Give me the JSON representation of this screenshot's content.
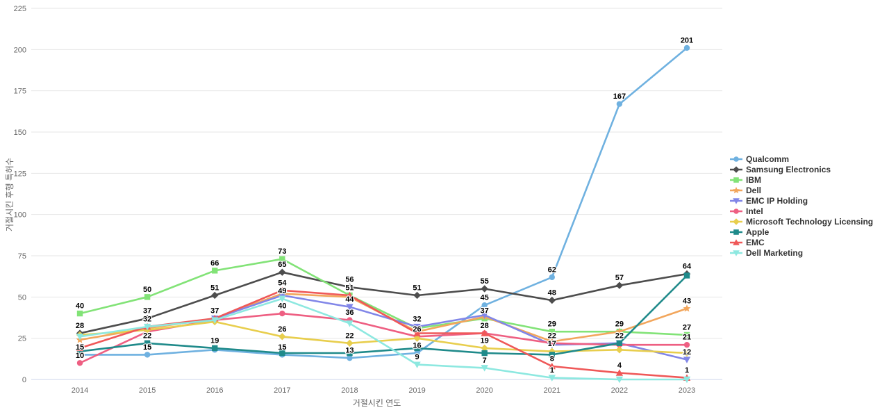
{
  "chart_data": {
    "type": "line",
    "x": [
      2014,
      2015,
      2016,
      2017,
      2018,
      2019,
      2020,
      2021,
      2022,
      2023
    ],
    "xlabel": "거절시킨 연도",
    "ylabel": "거절시킨 후행 특허수",
    "ylim": [
      0,
      225
    ],
    "yticks": [
      0,
      25,
      50,
      75,
      100,
      125,
      150,
      175,
      200,
      225
    ],
    "grid": true,
    "legend_position": "right",
    "colors": {
      "grid": "#e6e6e6",
      "axis_line": "#ccd6eb",
      "tick_text": "#666666",
      "legend_text": "#333333",
      "label_text": "#000000"
    },
    "series": [
      {
        "name": "Qualcomm",
        "color": "#6fb1e0",
        "marker": "circle",
        "values": [
          15,
          15,
          18,
          15,
          13,
          16,
          45,
          62,
          167,
          201
        ],
        "shown_labels": [
          15,
          15,
          null,
          15,
          13,
          16,
          45,
          62,
          167,
          201
        ]
      },
      {
        "name": "Samsung Electronics",
        "color": "#4d4d4d",
        "marker": "diamond",
        "values": [
          28,
          37,
          51,
          65,
          56,
          51,
          55,
          48,
          57,
          64
        ],
        "shown_labels": [
          28,
          37,
          51,
          65,
          56,
          51,
          55,
          48,
          57,
          64
        ]
      },
      {
        "name": "IBM",
        "color": "#82e377",
        "marker": "square",
        "values": [
          40,
          50,
          66,
          73,
          51,
          31,
          37,
          29,
          29,
          27
        ],
        "shown_labels": [
          40,
          50,
          66,
          73,
          51,
          null,
          37,
          29,
          null,
          27
        ]
      },
      {
        "name": "Dell",
        "color": "#f2a65c",
        "marker": "star",
        "values": [
          24,
          31,
          37,
          52,
          50,
          29,
          38,
          23,
          29,
          43
        ],
        "shown_labels": [
          null,
          null,
          37,
          null,
          null,
          null,
          null,
          null,
          29,
          43
        ]
      },
      {
        "name": "EMC IP Holding",
        "color": "#8186e8",
        "marker": "triangle-down",
        "values": [
          null,
          null,
          37,
          51,
          44,
          32,
          39,
          21,
          22,
          12
        ],
        "shown_labels": [
          null,
          null,
          null,
          null,
          44,
          32,
          null,
          null,
          null,
          12
        ]
      },
      {
        "name": "Intel",
        "color": "#ee5f82",
        "marker": "circle",
        "values": [
          10,
          29,
          36,
          40,
          36,
          26,
          28,
          22,
          21,
          21
        ],
        "shown_labels": [
          10,
          null,
          null,
          40,
          36,
          26,
          28,
          22,
          null,
          21
        ]
      },
      {
        "name": "Microsoft Technology Licensing",
        "color": "#e8ce4d",
        "marker": "diamond",
        "values": [
          27,
          30,
          35,
          26,
          22,
          25,
          19,
          17,
          18,
          16
        ],
        "shown_labels": [
          null,
          null,
          null,
          26,
          22,
          null,
          19,
          17,
          null,
          null
        ]
      },
      {
        "name": "Apple",
        "color": "#1f8a8a",
        "marker": "square",
        "values": [
          17,
          22,
          19,
          16,
          16,
          19,
          16,
          15,
          22,
          63
        ],
        "shown_labels": [
          null,
          22,
          19,
          null,
          null,
          null,
          null,
          null,
          22,
          null
        ]
      },
      {
        "name": "EMC",
        "color": "#ef5858",
        "marker": "triangle-up",
        "values": [
          19,
          32,
          37,
          54,
          51,
          28,
          28,
          8,
          4,
          1
        ],
        "shown_labels": [
          null,
          null,
          null,
          54,
          null,
          null,
          null,
          8,
          4,
          1
        ]
      },
      {
        "name": "Dell Marketing",
        "color": "#8de8e0",
        "marker": "triangle-down",
        "values": [
          26,
          32,
          36,
          49,
          34,
          9,
          7,
          1,
          0,
          0
        ],
        "shown_labels": [
          null,
          32,
          null,
          49,
          null,
          9,
          7,
          1,
          null,
          null
        ]
      }
    ]
  }
}
